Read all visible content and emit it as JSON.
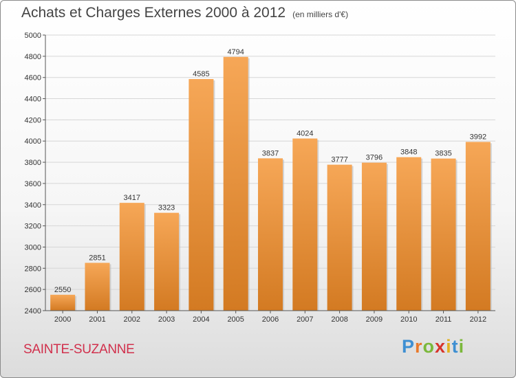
{
  "header": {
    "title": "Achats et Charges Externes 2000 à 2012",
    "subtitle": "(en milliers d'€)"
  },
  "footer": {
    "town": "SAINTE-SUZANNE",
    "logo": "Proxiti"
  },
  "colors": {
    "bar_top": "#f6a757",
    "bar_bottom": "#d37a22",
    "town": "#d1304c"
  },
  "chart_data": {
    "type": "bar",
    "title": "Achats et Charges Externes 2000 à 2012",
    "subtitle": "(en milliers d'€)",
    "xlabel": "",
    "ylabel": "",
    "categories": [
      "2000",
      "2001",
      "2002",
      "2003",
      "2004",
      "2005",
      "2006",
      "2007",
      "2008",
      "2009",
      "2010",
      "2011",
      "2012"
    ],
    "values": [
      2550,
      2851,
      3417,
      3323,
      4585,
      4794,
      3837,
      4024,
      3777,
      3796,
      3848,
      3835,
      3992
    ],
    "ylim": [
      2400,
      5000
    ],
    "yticks": [
      2400,
      2600,
      2800,
      3000,
      3200,
      3400,
      3600,
      3800,
      4000,
      4200,
      4400,
      4600,
      4800,
      5000
    ],
    "grid": true,
    "legend": "none"
  }
}
